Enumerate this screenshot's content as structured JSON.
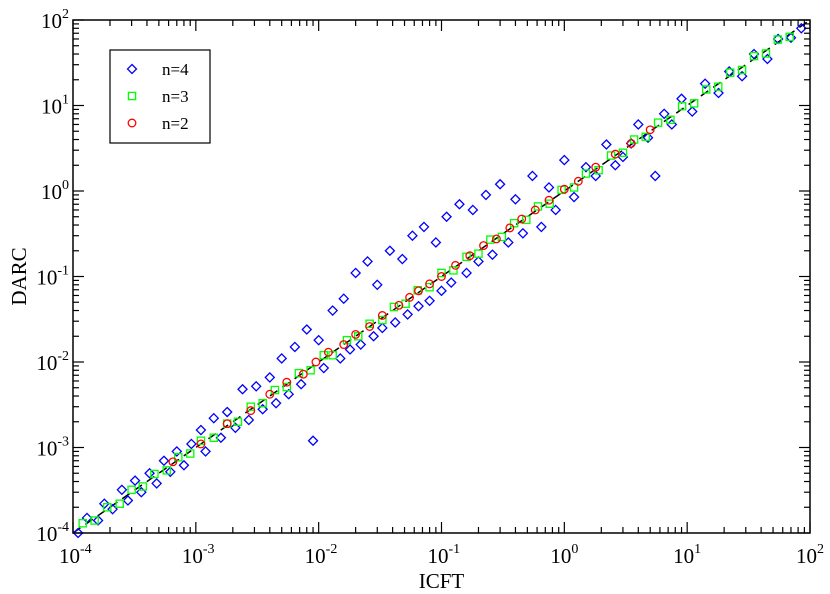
{
  "chart_data": {
    "type": "scatter",
    "xlabel": "ICFT",
    "ylabel": "DARC",
    "xscale": "log",
    "yscale": "log",
    "xlim": [
      0.0001,
      100
    ],
    "ylim": [
      0.0001,
      100
    ],
    "x_tick_labels": [
      {
        "base": "10",
        "exp": "-4"
      },
      {
        "base": "10",
        "exp": "-3"
      },
      {
        "base": "10",
        "exp": "-2"
      },
      {
        "base": "10",
        "exp": "-1"
      },
      {
        "base": "10",
        "exp": "0"
      },
      {
        "base": "10",
        "exp": "1"
      },
      {
        "base": "10",
        "exp": "2"
      }
    ],
    "y_tick_labels": [
      {
        "base": "10",
        "exp": "-4"
      },
      {
        "base": "10",
        "exp": "-3"
      },
      {
        "base": "10",
        "exp": "-2"
      },
      {
        "base": "10",
        "exp": "-1"
      },
      {
        "base": "10",
        "exp": "0"
      },
      {
        "base": "10",
        "exp": "1"
      },
      {
        "base": "10",
        "exp": "2"
      }
    ],
    "reference_line": {
      "style": "dashed",
      "color": "#000000",
      "equation": "y = x"
    },
    "legend": {
      "placement": "top-left"
    },
    "grid": false,
    "series": [
      {
        "name": "n=4",
        "marker": "diamond",
        "color": "#0000ff",
        "points": [
          [
            0.00011,
            0.0001
          ],
          [
            0.00013,
            0.00015
          ],
          [
            0.00016,
            0.00014
          ],
          [
            0.00018,
            0.00022
          ],
          [
            0.00021,
            0.00019
          ],
          [
            0.00025,
            0.00032
          ],
          [
            0.00028,
            0.00024
          ],
          [
            0.00032,
            0.00041
          ],
          [
            0.00036,
            0.0003
          ],
          [
            0.00042,
            0.0005
          ],
          [
            0.00048,
            0.00038
          ],
          [
            0.00055,
            0.0007
          ],
          [
            0.00062,
            0.00052
          ],
          [
            0.0007,
            0.0009
          ],
          [
            0.0008,
            0.00062
          ],
          [
            0.00092,
            0.0011
          ],
          [
            0.0011,
            0.0016
          ],
          [
            0.0012,
            0.0009
          ],
          [
            0.0014,
            0.0022
          ],
          [
            0.0016,
            0.0013
          ],
          [
            0.0018,
            0.0026
          ],
          [
            0.0021,
            0.0017
          ],
          [
            0.0024,
            0.0048
          ],
          [
            0.0027,
            0.0021
          ],
          [
            0.0031,
            0.0052
          ],
          [
            0.0035,
            0.0028
          ],
          [
            0.004,
            0.0066
          ],
          [
            0.0045,
            0.0033
          ],
          [
            0.005,
            0.011
          ],
          [
            0.0057,
            0.0042
          ],
          [
            0.0064,
            0.015
          ],
          [
            0.0072,
            0.0055
          ],
          [
            0.008,
            0.024
          ],
          [
            0.009,
            0.0012
          ],
          [
            0.01,
            0.018
          ],
          [
            0.011,
            0.0085
          ],
          [
            0.013,
            0.04
          ],
          [
            0.015,
            0.011
          ],
          [
            0.016,
            0.055
          ],
          [
            0.018,
            0.014
          ],
          [
            0.02,
            0.11
          ],
          [
            0.022,
            0.016
          ],
          [
            0.025,
            0.15
          ],
          [
            0.028,
            0.02
          ],
          [
            0.03,
            0.08
          ],
          [
            0.033,
            0.025
          ],
          [
            0.038,
            0.2
          ],
          [
            0.042,
            0.029
          ],
          [
            0.048,
            0.16
          ],
          [
            0.053,
            0.036
          ],
          [
            0.058,
            0.3
          ],
          [
            0.065,
            0.045
          ],
          [
            0.072,
            0.38
          ],
          [
            0.08,
            0.052
          ],
          [
            0.09,
            0.25
          ],
          [
            0.1,
            0.068
          ],
          [
            0.11,
            0.5
          ],
          [
            0.12,
            0.085
          ],
          [
            0.14,
            0.7
          ],
          [
            0.16,
            0.11
          ],
          [
            0.18,
            0.6
          ],
          [
            0.2,
            0.15
          ],
          [
            0.23,
            0.9
          ],
          [
            0.26,
            0.18
          ],
          [
            0.3,
            1.2
          ],
          [
            0.35,
            0.25
          ],
          [
            0.4,
            0.8
          ],
          [
            0.46,
            0.32
          ],
          [
            0.55,
            1.5
          ],
          [
            0.65,
            0.38
          ],
          [
            0.75,
            1.1
          ],
          [
            0.85,
            0.6
          ],
          [
            1.0,
            2.3
          ],
          [
            1.2,
            0.85
          ],
          [
            1.5,
            1.9
          ],
          [
            1.8,
            1.5
          ],
          [
            2.2,
            3.5
          ],
          [
            2.6,
            2.0
          ],
          [
            3.0,
            2.5
          ],
          [
            3.5,
            3.6
          ],
          [
            4.0,
            6.0
          ],
          [
            4.8,
            4.2
          ],
          [
            5.5,
            1.5
          ],
          [
            6.5,
            8.0
          ],
          [
            7.5,
            6.0
          ],
          [
            9.0,
            12.0
          ],
          [
            11.0,
            8.5
          ],
          [
            14.0,
            18.0
          ],
          [
            18.0,
            14.0
          ],
          [
            22.0,
            25.0
          ],
          [
            28.0,
            22.0
          ],
          [
            35.0,
            40.0
          ],
          [
            45.0,
            35.0
          ],
          [
            55.0,
            60.0
          ],
          [
            70.0,
            62.0
          ],
          [
            85.0,
            80.0
          ]
        ]
      },
      {
        "name": "n=3",
        "marker": "square",
        "color": "#00ff00",
        "points": [
          [
            0.00012,
            0.00013
          ],
          [
            0.00015,
            0.00014
          ],
          [
            0.00019,
            0.0002
          ],
          [
            0.00024,
            0.00022
          ],
          [
            0.0003,
            0.00032
          ],
          [
            0.00037,
            0.00035
          ],
          [
            0.00046,
            0.00049
          ],
          [
            0.00058,
            0.00054
          ],
          [
            0.00072,
            0.00077
          ],
          [
            0.0009,
            0.00085
          ],
          [
            0.0011,
            0.0012
          ],
          [
            0.0014,
            0.0013
          ],
          [
            0.0018,
            0.0019
          ],
          [
            0.0022,
            0.002
          ],
          [
            0.0028,
            0.003
          ],
          [
            0.0035,
            0.0033
          ],
          [
            0.0044,
            0.0047
          ],
          [
            0.0055,
            0.0051
          ],
          [
            0.0069,
            0.0074
          ],
          [
            0.0086,
            0.008
          ],
          [
            0.011,
            0.012
          ],
          [
            0.013,
            0.012
          ],
          [
            0.017,
            0.018
          ],
          [
            0.021,
            0.02
          ],
          [
            0.026,
            0.028
          ],
          [
            0.033,
            0.031
          ],
          [
            0.041,
            0.044
          ],
          [
            0.051,
            0.048
          ],
          [
            0.064,
            0.069
          ],
          [
            0.08,
            0.075
          ],
          [
            0.1,
            0.11
          ],
          [
            0.125,
            0.118
          ],
          [
            0.16,
            0.17
          ],
          [
            0.2,
            0.185
          ],
          [
            0.25,
            0.27
          ],
          [
            0.31,
            0.29
          ],
          [
            0.39,
            0.42
          ],
          [
            0.49,
            0.46
          ],
          [
            0.61,
            0.66
          ],
          [
            0.76,
            0.71
          ],
          [
            0.95,
            1.03
          ],
          [
            1.2,
            1.1
          ],
          [
            1.5,
            1.6
          ],
          [
            1.9,
            1.75
          ],
          [
            2.4,
            2.6
          ],
          [
            3.0,
            2.8
          ],
          [
            3.7,
            4.0
          ],
          [
            4.6,
            4.3
          ],
          [
            5.8,
            6.3
          ],
          [
            7.3,
            6.8
          ],
          [
            9.1,
            9.8
          ],
          [
            11.4,
            10.6
          ],
          [
            14.3,
            15.4
          ],
          [
            17.9,
            16.6
          ],
          [
            22.4,
            24.2
          ],
          [
            28.0,
            26.0
          ],
          [
            35.0,
            37.8
          ],
          [
            43.8,
            40.6
          ],
          [
            54.7,
            59.0
          ],
          [
            68.4,
            63.5
          ]
        ]
      },
      {
        "name": "n=2",
        "marker": "circle",
        "color": "#ff0000",
        "points": [
          [
            0.00065,
            0.00068
          ],
          [
            0.0011,
            0.0011
          ],
          [
            0.0018,
            0.0019
          ],
          [
            0.0028,
            0.0027
          ],
          [
            0.004,
            0.0042
          ],
          [
            0.0055,
            0.0058
          ],
          [
            0.0075,
            0.0072
          ],
          [
            0.0095,
            0.01
          ],
          [
            0.012,
            0.013
          ],
          [
            0.016,
            0.016
          ],
          [
            0.02,
            0.021
          ],
          [
            0.026,
            0.026
          ],
          [
            0.033,
            0.035
          ],
          [
            0.045,
            0.046
          ],
          [
            0.055,
            0.057
          ],
          [
            0.065,
            0.068
          ],
          [
            0.08,
            0.082
          ],
          [
            0.1,
            0.1
          ],
          [
            0.13,
            0.135
          ],
          [
            0.17,
            0.175
          ],
          [
            0.22,
            0.23
          ],
          [
            0.28,
            0.275
          ],
          [
            0.36,
            0.37
          ],
          [
            0.45,
            0.47
          ],
          [
            0.58,
            0.6
          ],
          [
            0.75,
            0.78
          ],
          [
            1.0,
            1.05
          ],
          [
            1.3,
            1.3
          ],
          [
            1.8,
            1.9
          ],
          [
            2.6,
            2.7
          ],
          [
            3.5,
            3.6
          ],
          [
            5.0,
            5.2
          ]
        ]
      }
    ]
  }
}
